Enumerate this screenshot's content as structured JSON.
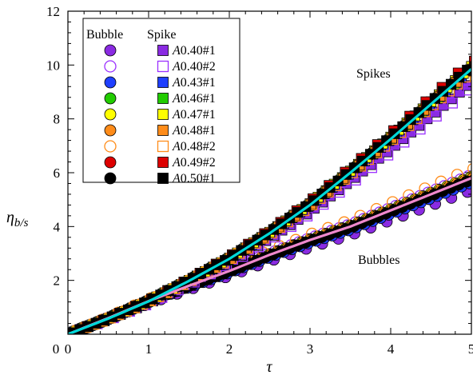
{
  "chart_data": {
    "type": "scatter",
    "title": "",
    "xlabel": "τ",
    "ylabel_main": "η",
    "ylabel_sub": "b/s",
    "xlim": [
      0,
      5
    ],
    "ylim": [
      0,
      12
    ],
    "xticks": [
      0,
      1,
      2,
      3,
      4,
      5
    ],
    "yticks": [
      2,
      4,
      6,
      8,
      10,
      12
    ],
    "grid": false,
    "legend_position": "top-left",
    "legend_headers": {
      "bubble": "Bubble",
      "spike": "Spike"
    },
    "annotations": [
      {
        "text": "Spikes",
        "x": 4.0,
        "y": 9.5
      },
      {
        "text": "Bubbles",
        "x": 4.0,
        "y": 3.0
      }
    ],
    "series": [
      {
        "name": "A0.40#1",
        "label_prefix": "A",
        "label_rest": "0.40#1",
        "fill": "#8a2be2",
        "edge": "#6a0dad",
        "filled": true
      },
      {
        "name": "A0.40#2",
        "label_prefix": "A",
        "label_rest": "0.40#2",
        "fill": "#ffffff",
        "edge": "#9b30ff",
        "filled": false
      },
      {
        "name": "A0.43#1",
        "label_prefix": "A",
        "label_rest": "0.43#1",
        "fill": "#1f3fff",
        "edge": "#0d1f99",
        "filled": true
      },
      {
        "name": "A0.46#1",
        "label_prefix": "A",
        "label_rest": "0.46#1",
        "fill": "#22cc00",
        "edge": "#116600",
        "filled": true
      },
      {
        "name": "A0.47#1",
        "label_prefix": "A",
        "label_rest": "0.47#1",
        "fill": "#ffff00",
        "edge": "#777700",
        "filled": true
      },
      {
        "name": "A0.48#1",
        "label_prefix": "A",
        "label_rest": "0.48#1",
        "fill": "#ff8c1a",
        "edge": "#aa5500",
        "filled": true
      },
      {
        "name": "A0.48#2",
        "label_prefix": "A",
        "label_rest": "0.48#2",
        "fill": "#ffffff",
        "edge": "#ff8c1a",
        "filled": false
      },
      {
        "name": "A0.49#2",
        "label_prefix": "A",
        "label_rest": "0.49#2",
        "fill": "#dd0000",
        "edge": "#880000",
        "filled": true
      },
      {
        "name": "A0.50#1",
        "label_prefix": "A",
        "label_rest": "0.50#1",
        "fill": "#000000",
        "edge": "#000000",
        "filled": true
      }
    ],
    "bubble_scale": [
      0.92,
      1.02,
      0.97,
      1.0,
      1.01,
      1.0,
      1.06,
      0.99,
      0.99
    ],
    "spike_scale": [
      0.95,
      0.93,
      1.0,
      1.0,
      1.01,
      1.0,
      0.99,
      1.03,
      1.01
    ],
    "bubble_curve": {
      "color": "#ee88cc",
      "label": ""
    },
    "spike_curve": {
      "color": "#00d8d8",
      "label": ""
    },
    "bubble_fit_points": [
      [
        0.0,
        0.0
      ],
      [
        0.5,
        0.6
      ],
      [
        1.0,
        1.23
      ],
      [
        1.5,
        1.8
      ],
      [
        2.0,
        2.35
      ],
      [
        2.5,
        2.95
      ],
      [
        3.0,
        3.5
      ],
      [
        3.5,
        4.0
      ],
      [
        4.0,
        4.6
      ],
      [
        4.5,
        5.2
      ],
      [
        5.0,
        5.8
      ]
    ],
    "spike_fit_points": [
      [
        0.0,
        0.0
      ],
      [
        0.5,
        0.58
      ],
      [
        1.0,
        1.22
      ],
      [
        1.5,
        1.98
      ],
      [
        2.0,
        2.8
      ],
      [
        2.5,
        3.75
      ],
      [
        3.0,
        4.8
      ],
      [
        3.5,
        6.0
      ],
      [
        4.0,
        7.25
      ],
      [
        4.5,
        8.55
      ],
      [
        5.0,
        9.85
      ]
    ]
  }
}
